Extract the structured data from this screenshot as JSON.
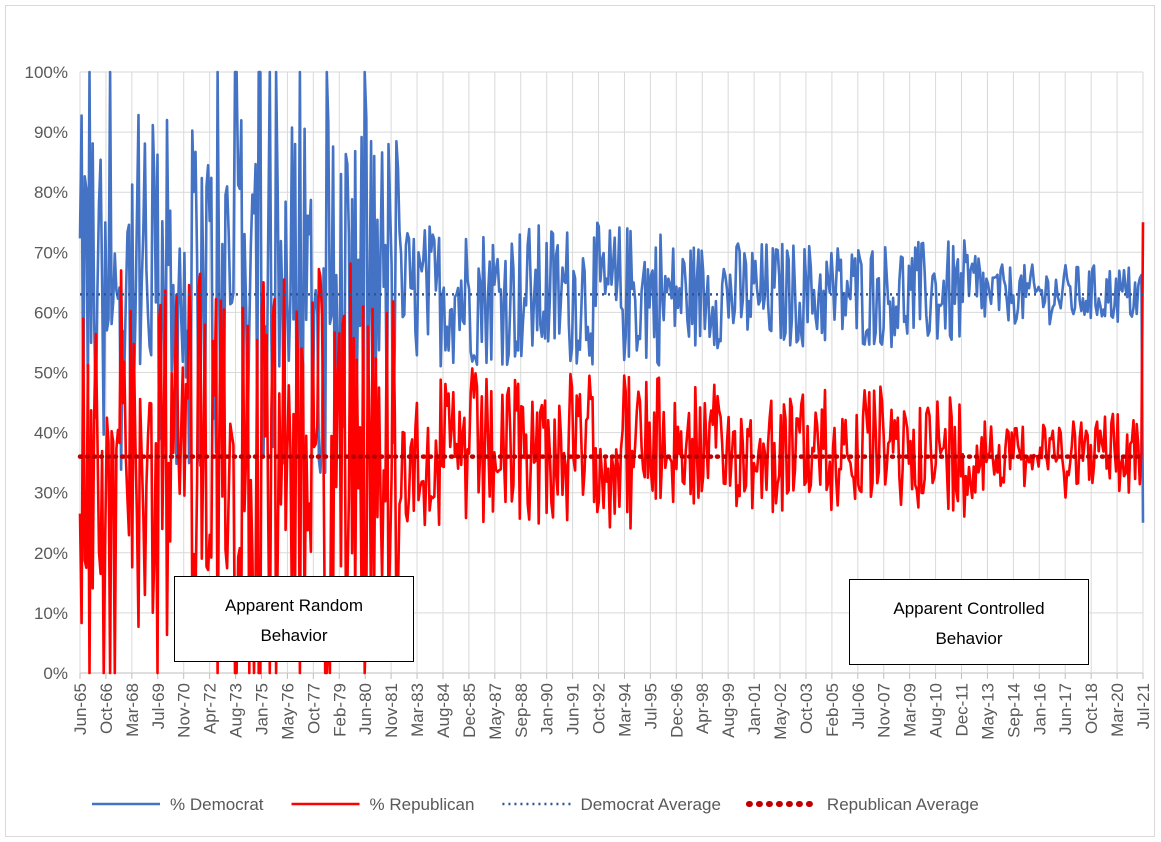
{
  "chart_data": {
    "type": "line",
    "title": "",
    "xlabel": "",
    "ylabel": "",
    "ylim": [
      0,
      1
    ],
    "y_ticks": [
      "0%",
      "10%",
      "20%",
      "30%",
      "40%",
      "50%",
      "60%",
      "70%",
      "80%",
      "90%",
      "100%"
    ],
    "x_range": [
      "Jun-65",
      "Jul-21"
    ],
    "x_ticks": [
      "Jun-65",
      "Oct-66",
      "Mar-68",
      "Jul-69",
      "Nov-70",
      "Apr-72",
      "Aug-73",
      "Jan-75",
      "May-76",
      "Oct-77",
      "Feb-79",
      "Jun-80",
      "Nov-81",
      "Mar-83",
      "Aug-84",
      "Dec-85",
      "May-87",
      "Sep-88",
      "Jan-90",
      "Jun-91",
      "Oct-92",
      "Mar-94",
      "Jul-95",
      "Dec-96",
      "Apr-98",
      "Aug-99",
      "Jan-01",
      "May-02",
      "Oct-03",
      "Feb-05",
      "Jul-06",
      "Nov-07",
      "Mar-09",
      "Aug-10",
      "Dec-11",
      "May-13",
      "Sep-14",
      "Jan-16",
      "Jun-17",
      "Oct-18",
      "Mar-20",
      "Jul-21"
    ],
    "grid": true,
    "legend_position": "bottom",
    "series": [
      {
        "name": "% Democrat",
        "color": "#4472c4",
        "style": "solid",
        "summary": {
          "mean": 0.63,
          "early_range": [
            0.0,
            1.0
          ],
          "late_range": [
            0.55,
            0.72
          ],
          "last": 0.25
        }
      },
      {
        "name": "% Republican",
        "color": "#ff0000",
        "style": "solid",
        "summary": {
          "mean": 0.36,
          "early_range": [
            0.0,
            1.0
          ],
          "late_range": [
            0.28,
            0.45
          ],
          "last": 0.75
        }
      },
      {
        "name": "Democrat Average",
        "color": "#2e5597",
        "style": "dotted",
        "value": 0.63
      },
      {
        "name": "Republican Average",
        "color": "#c00000",
        "style": "dotted-heavy",
        "value": 0.36
      }
    ],
    "annotations": [
      {
        "lines": [
          "Apparent Random",
          "Behavior"
        ]
      },
      {
        "lines": [
          "Apparent Controlled",
          "Behavior"
        ]
      }
    ]
  }
}
